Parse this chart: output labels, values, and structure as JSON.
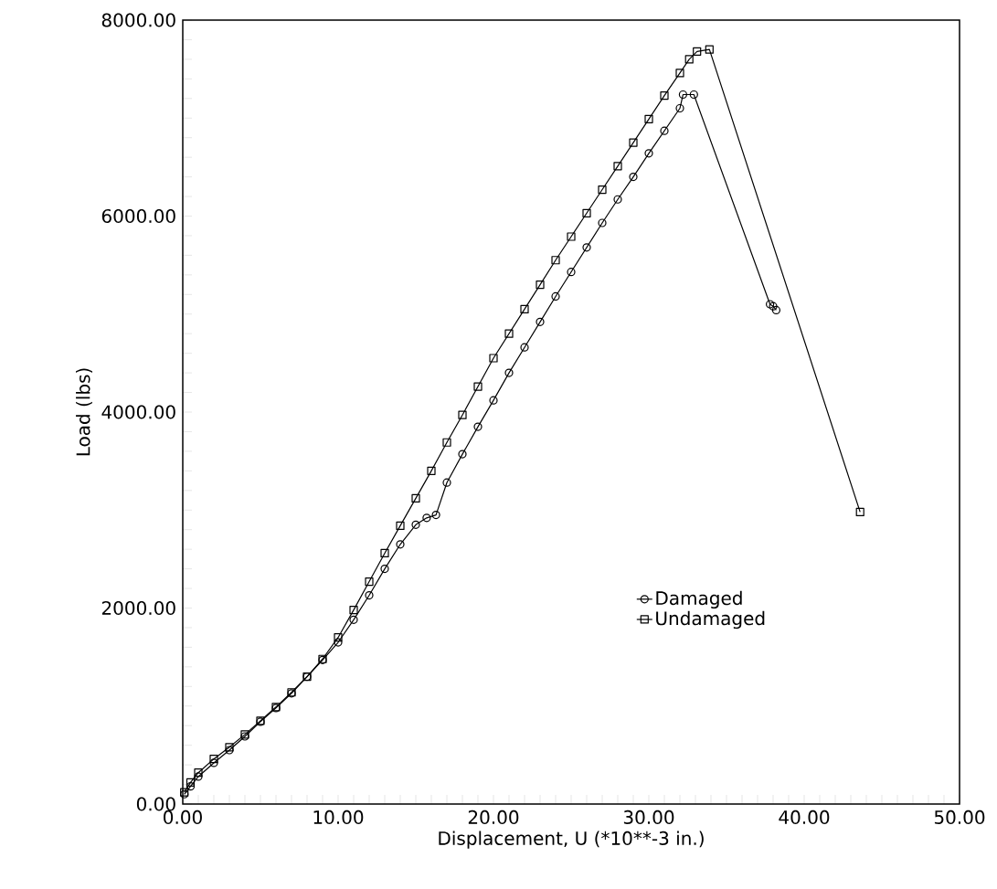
{
  "chart_data": {
    "type": "line",
    "xlabel": "Displacement, U (*10**-3 in.)",
    "ylabel": "Load (lbs)",
    "xlim": [
      0,
      50
    ],
    "ylim": [
      0,
      8000
    ],
    "xticks": [
      {
        "value": 0,
        "label": "0.00"
      },
      {
        "value": 10,
        "label": "10.00"
      },
      {
        "value": 20,
        "label": "20.00"
      },
      {
        "value": 30,
        "label": "30.00"
      },
      {
        "value": 40,
        "label": "40.00"
      },
      {
        "value": 50,
        "label": "50.00"
      }
    ],
    "yticks": [
      {
        "value": 0,
        "label": "0.00"
      },
      {
        "value": 2000,
        "label": "2000.00"
      },
      {
        "value": 4000,
        "label": "4000.00"
      },
      {
        "value": 6000,
        "label": "6000.00"
      },
      {
        "value": 8000,
        "label": "8000.00"
      }
    ],
    "grid": false,
    "legend": "bottom right",
    "line_style": "solid",
    "series": [
      {
        "name": "Damaged",
        "color": "#000000",
        "marker": "circle",
        "x": [
          0.1,
          0.5,
          1,
          2,
          3,
          4,
          5,
          6,
          7,
          8,
          9,
          10,
          11,
          12,
          13,
          14,
          15,
          15.7,
          16.3,
          17,
          18,
          19,
          20,
          21,
          22,
          23,
          24,
          25,
          26,
          27,
          28,
          29,
          30,
          31,
          32,
          32.2,
          32.9,
          37.8,
          38.0,
          38.2
        ],
        "values": [
          100,
          180,
          280,
          420,
          550,
          690,
          840,
          980,
          1130,
          1300,
          1470,
          1650,
          1880,
          2130,
          2400,
          2650,
          2850,
          2920,
          2950,
          3280,
          3570,
          3850,
          4120,
          4400,
          4660,
          4920,
          5180,
          5430,
          5680,
          5930,
          6170,
          6400,
          6640,
          6870,
          7100,
          7240,
          7240,
          5100,
          5080,
          5040
        ]
      },
      {
        "name": "Undamaged",
        "color": "#000000",
        "marker": "square",
        "x": [
          0.1,
          0.5,
          1,
          2,
          3,
          4,
          5,
          6,
          7,
          8,
          9,
          10,
          11,
          12,
          13,
          14,
          15,
          16,
          17,
          18,
          19,
          20,
          21,
          22,
          23,
          24,
          25,
          26,
          27,
          28,
          29,
          30,
          31,
          32,
          32.6,
          33.1,
          33.9,
          43.6
        ],
        "values": [
          120,
          220,
          320,
          460,
          580,
          710,
          850,
          990,
          1140,
          1300,
          1480,
          1700,
          1980,
          2270,
          2560,
          2840,
          3120,
          3400,
          3690,
          3970,
          4260,
          4550,
          4800,
          5050,
          5300,
          5550,
          5790,
          6030,
          6270,
          6510,
          6750,
          6990,
          7230,
          7460,
          7600,
          7680,
          7700,
          2980
        ]
      }
    ]
  }
}
